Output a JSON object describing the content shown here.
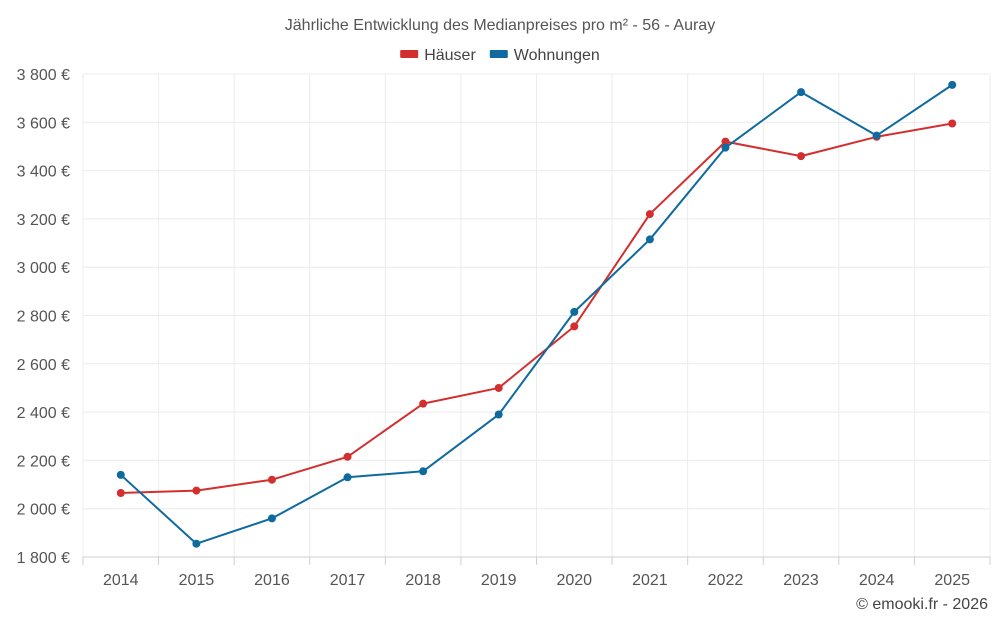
{
  "chart_data": {
    "type": "line",
    "title": "Jährliche Entwicklung des Medianpreises pro m² - 56 - Auray",
    "categories": [
      "2014",
      "2015",
      "2016",
      "2017",
      "2018",
      "2019",
      "2020",
      "2021",
      "2022",
      "2023",
      "2024",
      "2025"
    ],
    "series": [
      {
        "name": "Häuser",
        "color": "#d32f2f",
        "values": [
          2065,
          2075,
          2120,
          2215,
          2435,
          2500,
          2755,
          3220,
          3520,
          3460,
          3540,
          3595
        ]
      },
      {
        "name": "Wohnungen",
        "color": "#0f6aa0",
        "values": [
          2140,
          1855,
          1960,
          2130,
          2155,
          2390,
          2815,
          3115,
          3495,
          3725,
          3545,
          3755
        ]
      }
    ],
    "ylim": [
      1800,
      3800
    ],
    "yticks": [
      1800,
      2000,
      2200,
      2400,
      2600,
      2800,
      3000,
      3200,
      3400,
      3600,
      3800
    ],
    "ytick_labels": [
      "1 800 €",
      "2 000 €",
      "2 200 €",
      "2 400 €",
      "2 600 €",
      "2 800 €",
      "3 000 €",
      "3 200 €",
      "3 400 €",
      "3 600 €",
      "3 800 €"
    ],
    "xlabel": "",
    "ylabel": "",
    "legend_position": "top-center",
    "grid": true
  },
  "credit": "© emooki.fr - 2026"
}
